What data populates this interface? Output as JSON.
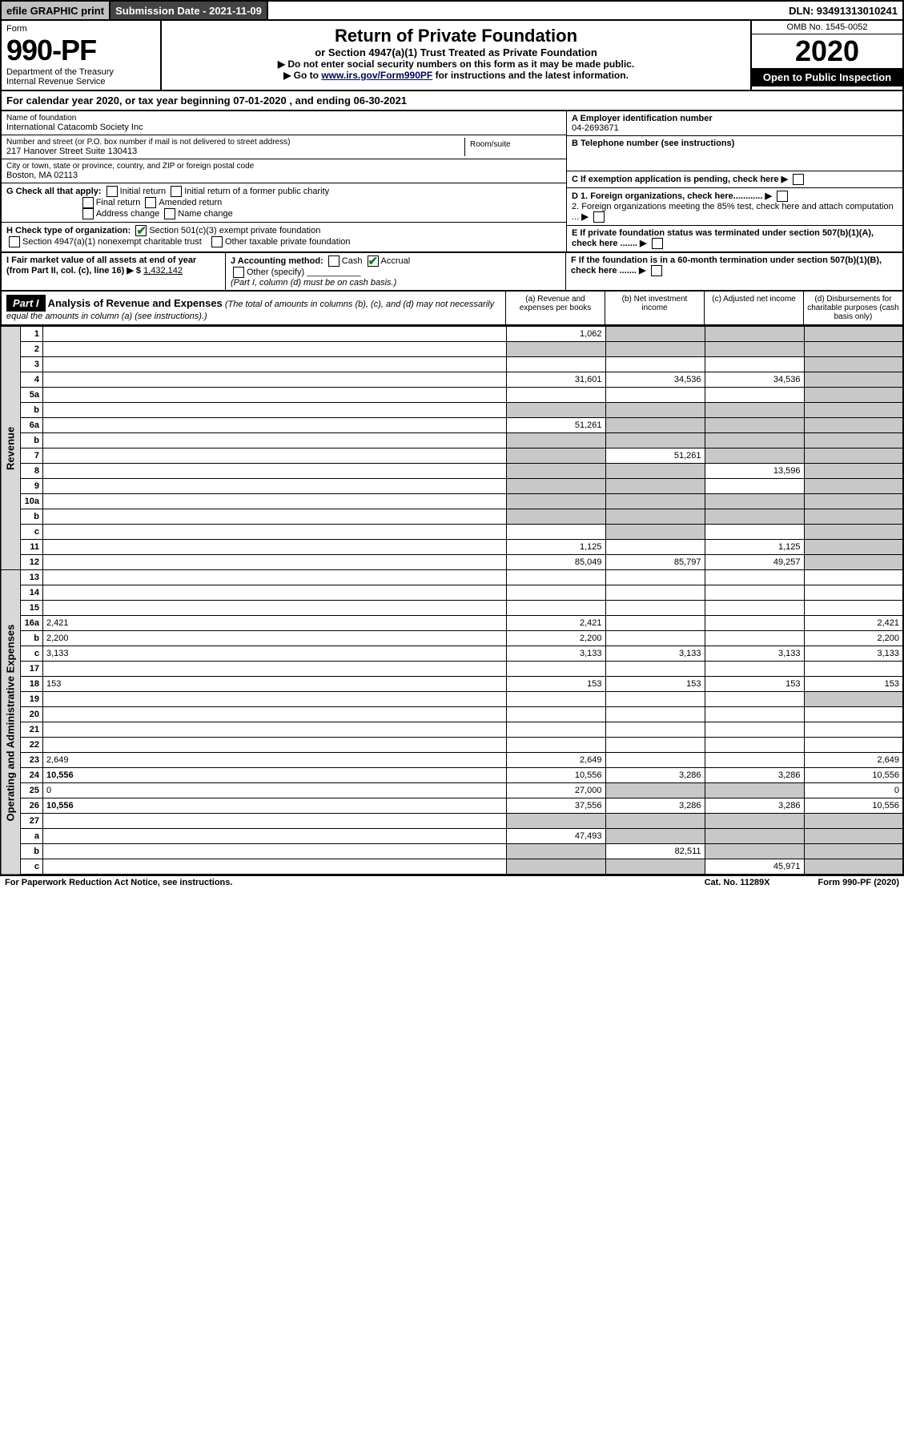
{
  "topbar": {
    "efile": "efile GRAPHIC print",
    "subdate_label": "Submission Date - 2021-11-09",
    "dln": "DLN: 93491313010241"
  },
  "header": {
    "form_word": "Form",
    "form_number": "990-PF",
    "dept": "Department of the Treasury",
    "irs": "Internal Revenue Service",
    "title": "Return of Private Foundation",
    "subtitle": "or Section 4947(a)(1) Trust Treated as Private Foundation",
    "instr1": "▶ Do not enter social security numbers on this form as it may be made public.",
    "instr2a": "▶ Go to ",
    "instr2_link": "www.irs.gov/Form990PF",
    "instr2b": " for instructions and the latest information.",
    "omb": "OMB No. 1545-0052",
    "year": "2020",
    "open": "Open to Public Inspection"
  },
  "cal": {
    "text_a": "For calendar year 2020, or tax year beginning ",
    "begin": "07-01-2020",
    "text_b": " , and ending ",
    "end": "06-30-2021"
  },
  "ident": {
    "name_lbl": "Name of foundation",
    "name": "International Catacomb Society Inc",
    "addr_lbl": "Number and street (or P.O. box number if mail is not delivered to street address)",
    "addr": "217 Hanover Street Suite 130413",
    "room_lbl": "Room/suite",
    "city_lbl": "City or town, state or province, country, and ZIP or foreign postal code",
    "city": "Boston, MA  02113",
    "A_lbl": "A Employer identification number",
    "A_val": "04-2693671",
    "B_lbl": "B Telephone number (see instructions)",
    "C_lbl": "C If exemption application is pending, check here",
    "D1": "D 1. Foreign organizations, check here............",
    "D2": "2. Foreign organizations meeting the 85% test, check here and attach computation ...",
    "E": "E If private foundation status was terminated under section 507(b)(1)(A), check here .......",
    "F": "F If the foundation is in a 60-month termination under section 507(b)(1)(B), check here .......",
    "G_lbl": "G Check all that apply:",
    "G_opts": [
      "Initial return",
      "Initial return of a former public charity",
      "Final return",
      "Amended return",
      "Address change",
      "Name change"
    ],
    "H_lbl": "H Check type of organization:",
    "H_opt1": "Section 501(c)(3) exempt private foundation",
    "H_opt2": "Section 4947(a)(1) nonexempt charitable trust",
    "H_opt3": "Other taxable private foundation",
    "I_lbl": "I Fair market value of all assets at end of year (from Part II, col. (c), line 16)",
    "I_val": "1,432,142",
    "J_lbl": "J Accounting method:",
    "J_opts": [
      "Cash",
      "Accrual"
    ],
    "J_other": "Other (specify)",
    "J_note": "(Part I, column (d) must be on cash basis.)"
  },
  "part1": {
    "badge": "Part I",
    "title": "Analysis of Revenue and Expenses",
    "title_note": "(The total of amounts in columns (b), (c), and (d) may not necessarily equal the amounts in column (a) (see instructions).)",
    "col_a": "(a) Revenue and expenses per books",
    "col_b": "(b) Net investment income",
    "col_c": "(c) Adjusted net income",
    "col_d": "(d) Disbursements for charitable purposes (cash basis only)"
  },
  "vlabels": {
    "rev": "Revenue",
    "exp": "Operating and Administrative Expenses"
  },
  "rows": [
    {
      "n": "1",
      "d": "",
      "a": "1,062",
      "b": "",
      "c": "",
      "a_shade": false,
      "b_shade": true,
      "c_shade": true,
      "d_shade": true
    },
    {
      "n": "2",
      "d": "",
      "a": "",
      "b": "",
      "c": "",
      "a_shade": true,
      "b_shade": true,
      "c_shade": true,
      "d_shade": true,
      "bold_not": true
    },
    {
      "n": "3",
      "d": "",
      "a": "",
      "b": "",
      "c": "",
      "d_shade": true
    },
    {
      "n": "4",
      "d": "",
      "a": "31,601",
      "b": "34,536",
      "c": "34,536",
      "d_shade": true
    },
    {
      "n": "5a",
      "d": "",
      "a": "",
      "b": "",
      "c": "",
      "d_shade": true
    },
    {
      "n": "b",
      "d": "",
      "a": "",
      "b": "",
      "c": "",
      "a_shade": true,
      "b_shade": true,
      "c_shade": true,
      "d_shade": true
    },
    {
      "n": "6a",
      "d": "",
      "a": "51,261",
      "b": "",
      "c": "",
      "b_shade": true,
      "c_shade": true,
      "d_shade": true
    },
    {
      "n": "b",
      "d": "",
      "a": "",
      "b": "",
      "c": "",
      "a_shade": true,
      "b_shade": true,
      "c_shade": true,
      "d_shade": true
    },
    {
      "n": "7",
      "d": "",
      "a": "",
      "b": "51,261",
      "c": "",
      "a_shade": true,
      "c_shade": true,
      "d_shade": true
    },
    {
      "n": "8",
      "d": "",
      "a": "",
      "b": "",
      "c": "13,596",
      "a_shade": true,
      "b_shade": true,
      "d_shade": true
    },
    {
      "n": "9",
      "d": "",
      "a": "",
      "b": "",
      "c": "",
      "a_shade": true,
      "b_shade": true,
      "d_shade": true
    },
    {
      "n": "10a",
      "d": "",
      "a": "",
      "b": "",
      "c": "",
      "a_shade": true,
      "b_shade": true,
      "c_shade": true,
      "d_shade": true
    },
    {
      "n": "b",
      "d": "",
      "a": "",
      "b": "",
      "c": "",
      "a_shade": true,
      "b_shade": true,
      "c_shade": true,
      "d_shade": true
    },
    {
      "n": "c",
      "d": "",
      "a": "",
      "b": "",
      "c": "",
      "b_shade": true,
      "d_shade": true
    },
    {
      "n": "11",
      "d": "",
      "a": "1,125",
      "b": "",
      "c": "1,125",
      "d_shade": true
    },
    {
      "n": "12",
      "d": "",
      "a": "85,049",
      "b": "85,797",
      "c": "49,257",
      "d_shade": true,
      "bold": true
    }
  ],
  "exp_rows": [
    {
      "n": "13",
      "d": "",
      "a": "",
      "b": "",
      "c": ""
    },
    {
      "n": "14",
      "d": "",
      "a": "",
      "b": "",
      "c": ""
    },
    {
      "n": "15",
      "d": "",
      "a": "",
      "b": "",
      "c": ""
    },
    {
      "n": "16a",
      "d": "2,421",
      "a": "2,421",
      "b": "",
      "c": ""
    },
    {
      "n": "b",
      "d": "2,200",
      "a": "2,200",
      "b": "",
      "c": ""
    },
    {
      "n": "c",
      "d": "3,133",
      "a": "3,133",
      "b": "3,133",
      "c": "3,133"
    },
    {
      "n": "17",
      "d": "",
      "a": "",
      "b": "",
      "c": ""
    },
    {
      "n": "18",
      "d": "153",
      "a": "153",
      "b": "153",
      "c": "153"
    },
    {
      "n": "19",
      "d": "",
      "a": "",
      "b": "",
      "c": "",
      "d_shade": true
    },
    {
      "n": "20",
      "d": "",
      "a": "",
      "b": "",
      "c": ""
    },
    {
      "n": "21",
      "d": "",
      "a": "",
      "b": "",
      "c": ""
    },
    {
      "n": "22",
      "d": "",
      "a": "",
      "b": "",
      "c": ""
    },
    {
      "n": "23",
      "d": "2,649",
      "a": "2,649",
      "b": "",
      "c": ""
    },
    {
      "n": "24",
      "d": "10,556",
      "a": "10,556",
      "b": "3,286",
      "c": "3,286",
      "bold": true
    },
    {
      "n": "25",
      "d": "0",
      "a": "27,000",
      "b": "",
      "c": "",
      "b_shade": true,
      "c_shade": true
    },
    {
      "n": "26",
      "d": "10,556",
      "a": "37,556",
      "b": "3,286",
      "c": "3,286",
      "bold": true
    },
    {
      "n": "27",
      "d": "",
      "a": "",
      "b": "",
      "c": "",
      "a_shade": true,
      "b_shade": true,
      "c_shade": true,
      "d_shade": true
    },
    {
      "n": "a",
      "d": "",
      "a": "47,493",
      "b": "",
      "c": "",
      "b_shade": true,
      "c_shade": true,
      "d_shade": true,
      "bold": true
    },
    {
      "n": "b",
      "d": "",
      "a": "",
      "b": "82,511",
      "c": "",
      "a_shade": true,
      "c_shade": true,
      "d_shade": true,
      "bold": true
    },
    {
      "n": "c",
      "d": "",
      "a": "",
      "b": "",
      "c": "45,971",
      "a_shade": true,
      "b_shade": true,
      "d_shade": true,
      "bold": true
    }
  ],
  "footer": {
    "left": "For Paperwork Reduction Act Notice, see instructions.",
    "mid": "Cat. No. 11289X",
    "right": "Form 990-PF (2020)"
  }
}
